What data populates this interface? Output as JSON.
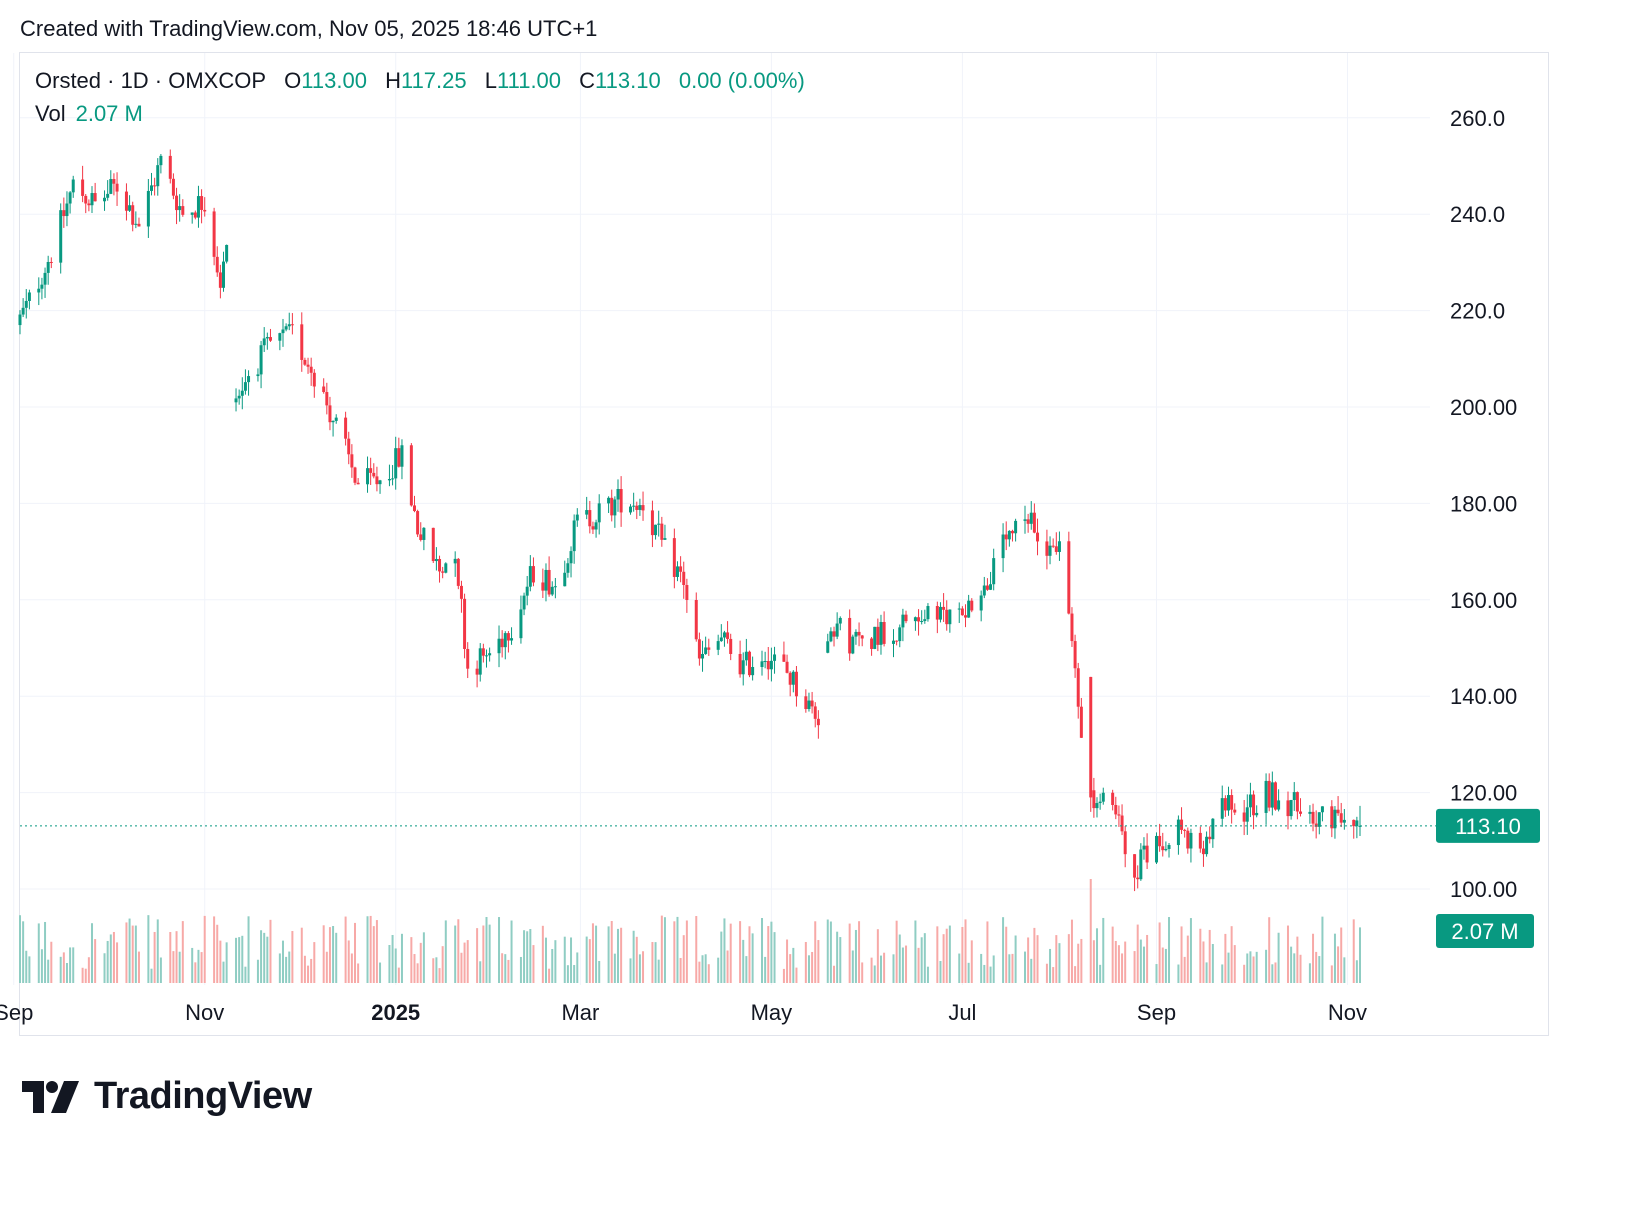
{
  "caption": "Created with TradingView.com, Nov 05, 2025 18:46 UTC+1",
  "legend": {
    "symbol": "Orsted · 1D · OMXCOP",
    "open_label": "O",
    "open": "113.00",
    "high_label": "H",
    "high": "117.25",
    "low_label": "L",
    "low": "111.00",
    "close_label": "C",
    "close": "113.10",
    "change": "0.00 (0.00%)",
    "vol_label": "Vol",
    "vol": "2.07 M"
  },
  "price_tag": "113.10",
  "volume_tag": "2.07 M",
  "logo": {
    "text": "TradingView"
  },
  "colors": {
    "up": "#089981",
    "down": "#f23645",
    "vol_up": "#8fcdc3",
    "vol_down": "#f7a9a7",
    "grid": "#f0f3fa"
  },
  "chart_data": {
    "type": "candlestick",
    "title": "Orsted · 1D · OMXCOP",
    "y_axis": {
      "ticks": [
        "260.0",
        "240.0",
        "220.0",
        "200.00",
        "180.00",
        "160.00",
        "140.00",
        "120.00",
        "100.00"
      ],
      "range": [
        81,
        263
      ]
    },
    "x_axis": {
      "ticks": [
        "Sep",
        "Nov",
        "2025",
        "Mar",
        "May",
        "Jul",
        "Sep",
        "Nov"
      ],
      "bold_tick": "2025",
      "range": [
        "2024-09-03",
        "2025-11-05"
      ]
    },
    "last_close": 113.1,
    "last_volume": "2.07 M",
    "grid": true,
    "anchors": [
      [
        "2024-09-02",
        217
      ],
      [
        "2024-09-06",
        222
      ],
      [
        "2024-09-13",
        232
      ],
      [
        "2024-09-20",
        246
      ],
      [
        "2024-09-27",
        242
      ],
      [
        "2024-10-04",
        246
      ],
      [
        "2024-10-11",
        238
      ],
      [
        "2024-10-18",
        251
      ],
      [
        "2024-10-25",
        240
      ],
      [
        "2024-11-01",
        243
      ],
      [
        "2024-11-06",
        226
      ],
      [
        "2024-11-08",
        232
      ],
      [
        "2024-11-11",
        202
      ],
      [
        "2024-11-15",
        207
      ],
      [
        "2024-11-22",
        213
      ],
      [
        "2024-11-29",
        215
      ],
      [
        "2024-12-06",
        207
      ],
      [
        "2024-12-13",
        196
      ],
      [
        "2024-12-20",
        184
      ],
      [
        "2024-12-27",
        185
      ],
      [
        "2025-01-03",
        190
      ],
      [
        "2025-01-08",
        175
      ],
      [
        "2025-01-15",
        166
      ],
      [
        "2025-01-20",
        171
      ],
      [
        "2025-01-24",
        146
      ],
      [
        "2025-01-31",
        149
      ],
      [
        "2025-02-07",
        155
      ],
      [
        "2025-02-14",
        166
      ],
      [
        "2025-02-21",
        163
      ],
      [
        "2025-02-28",
        176
      ],
      [
        "2025-03-07",
        178
      ],
      [
        "2025-03-14",
        181
      ],
      [
        "2025-03-21",
        180
      ],
      [
        "2025-03-28",
        170
      ],
      [
        "2025-04-03",
        164
      ],
      [
        "2025-04-08",
        147
      ],
      [
        "2025-04-15",
        152
      ],
      [
        "2025-04-22",
        146
      ],
      [
        "2025-04-29",
        149
      ],
      [
        "2025-05-06",
        145
      ],
      [
        "2025-05-13",
        138
      ],
      [
        "2025-05-16",
        136
      ],
      [
        "2025-05-20",
        156
      ],
      [
        "2025-05-27",
        151
      ],
      [
        "2025-06-03",
        153
      ],
      [
        "2025-06-10",
        154
      ],
      [
        "2025-06-17",
        157
      ],
      [
        "2025-06-24",
        156
      ],
      [
        "2025-07-01",
        158
      ],
      [
        "2025-07-08",
        162
      ],
      [
        "2025-07-15",
        172
      ],
      [
        "2025-07-22",
        176
      ],
      [
        "2025-07-29",
        171
      ],
      [
        "2025-08-01",
        172
      ],
      [
        "2025-08-11",
        118
      ],
      [
        "2025-08-18",
        117
      ],
      [
        "2025-08-25",
        104
      ],
      [
        "2025-09-01",
        110
      ],
      [
        "2025-09-08",
        113
      ],
      [
        "2025-09-15",
        106
      ],
      [
        "2025-09-22",
        117
      ],
      [
        "2025-09-29",
        116
      ],
      [
        "2025-10-06",
        120
      ],
      [
        "2025-10-13",
        118
      ],
      [
        "2025-10-20",
        116
      ],
      [
        "2025-10-27",
        114
      ],
      [
        "2025-11-05",
        113.1
      ]
    ]
  }
}
